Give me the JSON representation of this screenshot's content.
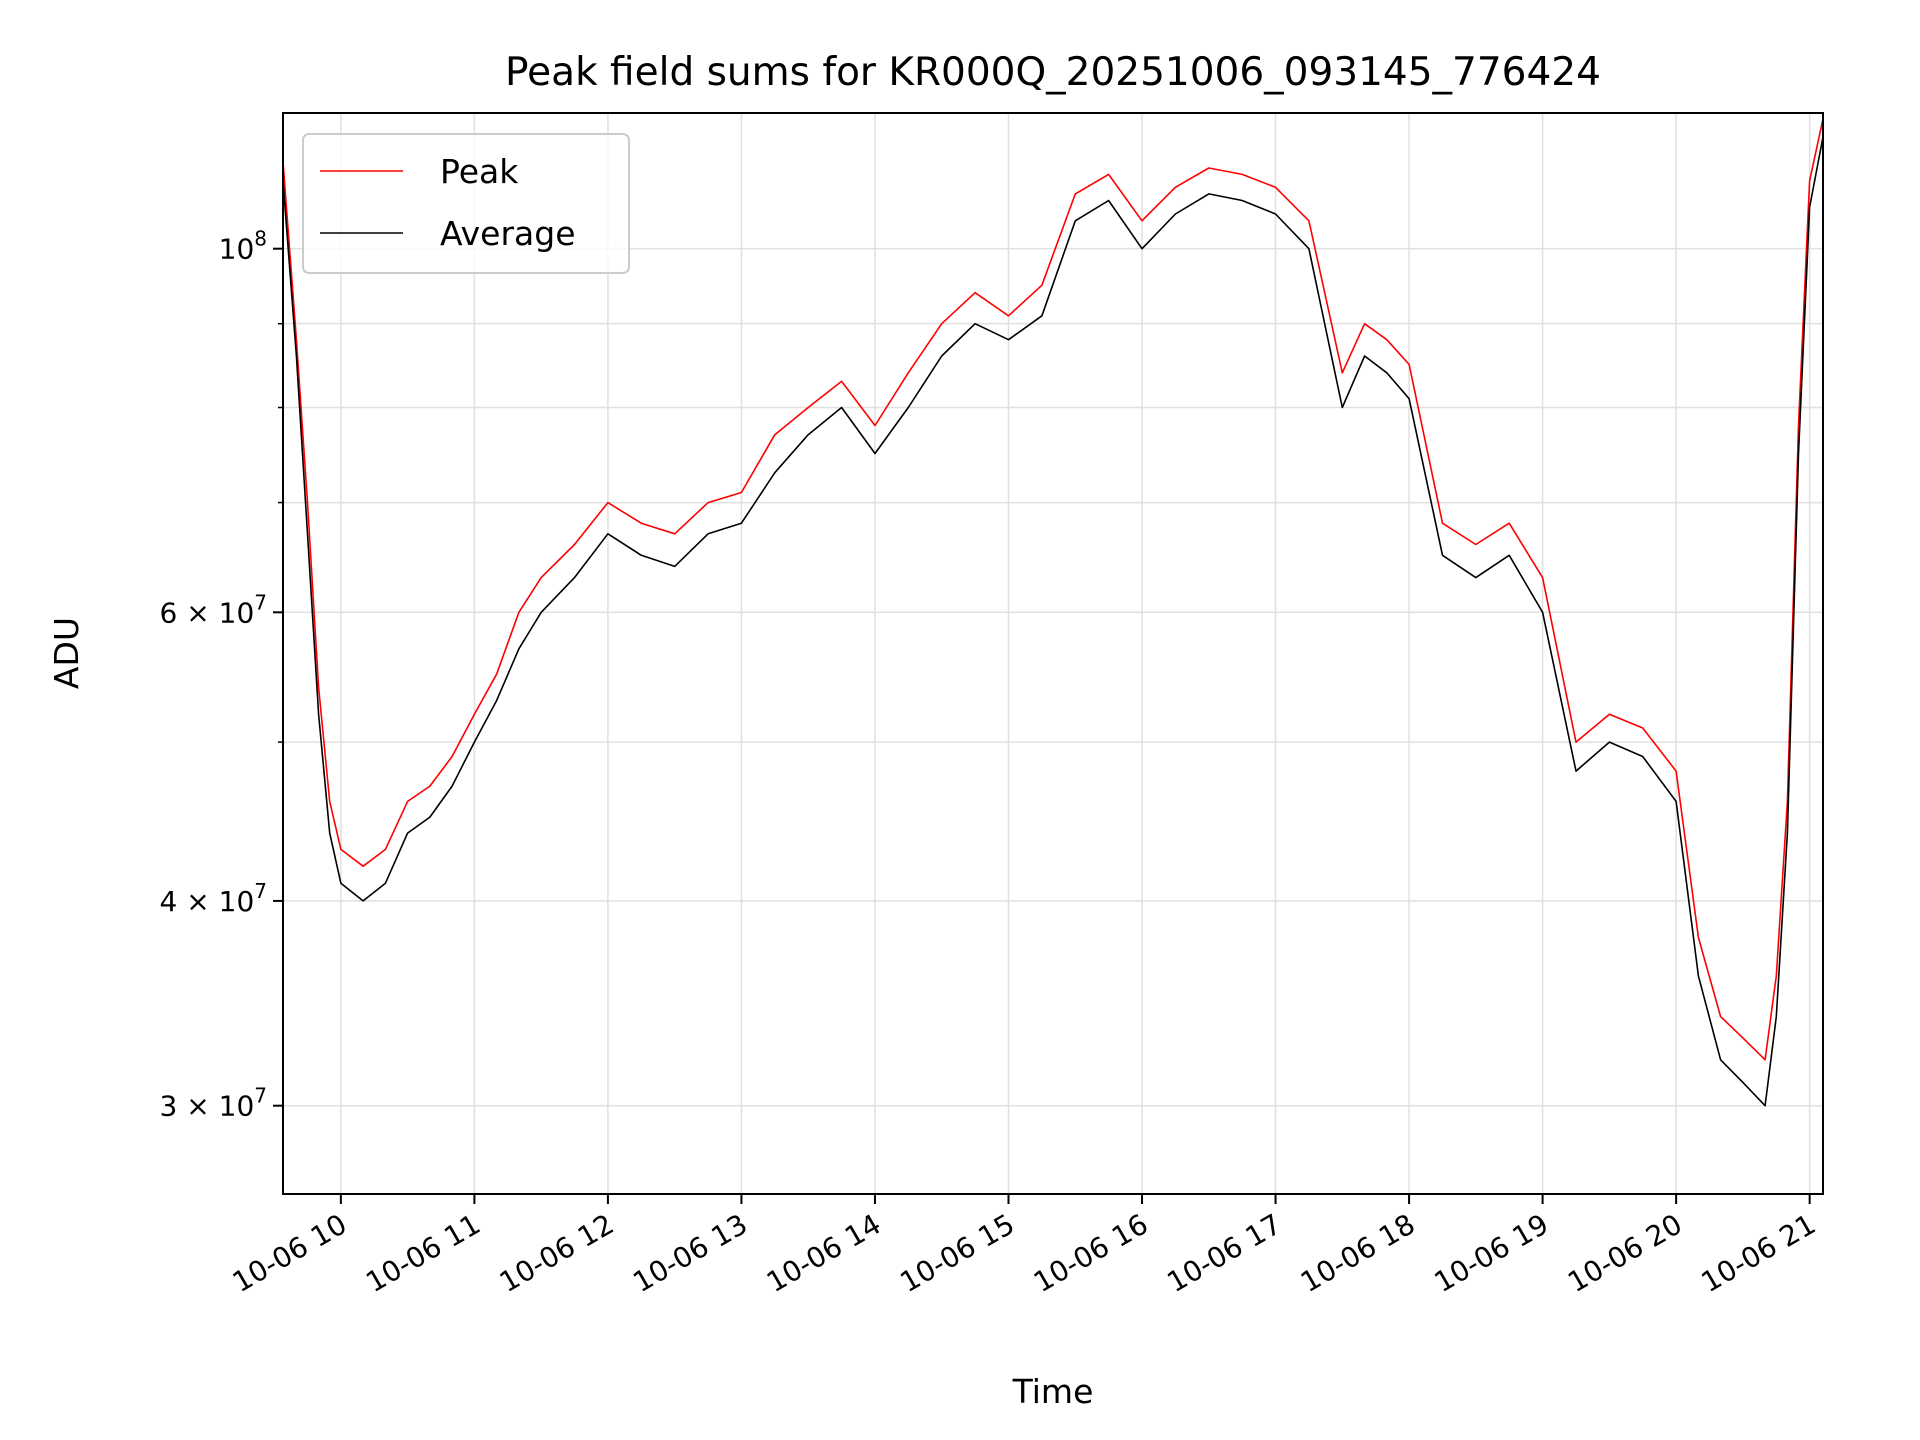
{
  "chart_data": {
    "type": "line",
    "title": "Peak field sums for KR000Q_20251006_093145_776424",
    "xlabel": "Time",
    "ylabel": "ADU",
    "y_scale": "log",
    "ylim": [
      26500000,
      121000000
    ],
    "xlim": [
      "2025-10-06 09:34",
      "2025-10-06 21:06"
    ],
    "grid": true,
    "legend": {
      "position": "top-left",
      "entries": [
        "Peak",
        "Average"
      ]
    },
    "x_ticks": [
      "10-06 10",
      "10-06 11",
      "10-06 12",
      "10-06 13",
      "10-06 14",
      "10-06 15",
      "10-06 16",
      "10-06 17",
      "10-06 18",
      "10-06 19",
      "10-06 20",
      "10-06 21"
    ],
    "x_tick_times": [
      "2025-10-06 10:00",
      "2025-10-06 11:00",
      "2025-10-06 12:00",
      "2025-10-06 13:00",
      "2025-10-06 14:00",
      "2025-10-06 15:00",
      "2025-10-06 16:00",
      "2025-10-06 17:00",
      "2025-10-06 18:00",
      "2025-10-06 19:00",
      "2025-10-06 20:00",
      "2025-10-06 21:00"
    ],
    "y_ticks": [
      {
        "value": 30000000,
        "mant": "3",
        "exp": "7"
      },
      {
        "value": 40000000,
        "mant": "4",
        "exp": "7"
      },
      {
        "value": 60000000,
        "mant": "6",
        "exp": "7"
      },
      {
        "value": 100000000,
        "mant": "",
        "exp": "8"
      }
    ],
    "y_minor_ticks": [
      50000000,
      70000000,
      80000000,
      90000000
    ],
    "series": [
      {
        "name": "Peak",
        "color": "#ff0000",
        "x": [
          "2025-10-06 09:34",
          "2025-10-06 09:40",
          "2025-10-06 09:45",
          "2025-10-06 09:50",
          "2025-10-06 09:55",
          "2025-10-06 10:00",
          "2025-10-06 10:10",
          "2025-10-06 10:20",
          "2025-10-06 10:30",
          "2025-10-06 10:40",
          "2025-10-06 10:50",
          "2025-10-06 11:00",
          "2025-10-06 11:10",
          "2025-10-06 11:20",
          "2025-10-06 11:30",
          "2025-10-06 11:45",
          "2025-10-06 12:00",
          "2025-10-06 12:15",
          "2025-10-06 12:30",
          "2025-10-06 12:45",
          "2025-10-06 13:00",
          "2025-10-06 13:15",
          "2025-10-06 13:30",
          "2025-10-06 13:45",
          "2025-10-06 14:00",
          "2025-10-06 14:15",
          "2025-10-06 14:30",
          "2025-10-06 14:45",
          "2025-10-06 15:00",
          "2025-10-06 15:15",
          "2025-10-06 15:30",
          "2025-10-06 15:45",
          "2025-10-06 16:00",
          "2025-10-06 16:15",
          "2025-10-06 16:30",
          "2025-10-06 16:45",
          "2025-10-06 17:00",
          "2025-10-06 17:15",
          "2025-10-06 17:30",
          "2025-10-06 17:40",
          "2025-10-06 17:50",
          "2025-10-06 18:00",
          "2025-10-06 18:15",
          "2025-10-06 18:30",
          "2025-10-06 18:45",
          "2025-10-06 19:00",
          "2025-10-06 19:15",
          "2025-10-06 19:30",
          "2025-10-06 19:45",
          "2025-10-06 20:00",
          "2025-10-06 20:10",
          "2025-10-06 20:20",
          "2025-10-06 20:30",
          "2025-10-06 20:40",
          "2025-10-06 20:45",
          "2025-10-06 20:50",
          "2025-10-06 20:55",
          "2025-10-06 21:00",
          "2025-10-06 21:06"
        ],
        "values": [
          113000000,
          88000000,
          70000000,
          54000000,
          46000000,
          43000000,
          42000000,
          43000000,
          46000000,
          47000000,
          49000000,
          52000000,
          55000000,
          60000000,
          63000000,
          66000000,
          70000000,
          68000000,
          67000000,
          70000000,
          71000000,
          77000000,
          80000000,
          83000000,
          78000000,
          84000000,
          90000000,
          94000000,
          91000000,
          95000000,
          108000000,
          111000000,
          104000000,
          109000000,
          112000000,
          111000000,
          109000000,
          104000000,
          84000000,
          90000000,
          88000000,
          85000000,
          68000000,
          66000000,
          68000000,
          63000000,
          50000000,
          52000000,
          51000000,
          48000000,
          38000000,
          34000000,
          33000000,
          32000000,
          36000000,
          46000000,
          78000000,
          110000000,
          120000000
        ]
      },
      {
        "name": "Average",
        "color": "#000000",
        "x": [
          "2025-10-06 09:34",
          "2025-10-06 09:40",
          "2025-10-06 09:45",
          "2025-10-06 09:50",
          "2025-10-06 09:55",
          "2025-10-06 10:00",
          "2025-10-06 10:10",
          "2025-10-06 10:20",
          "2025-10-06 10:30",
          "2025-10-06 10:40",
          "2025-10-06 10:50",
          "2025-10-06 11:00",
          "2025-10-06 11:10",
          "2025-10-06 11:20",
          "2025-10-06 11:30",
          "2025-10-06 11:45",
          "2025-10-06 12:00",
          "2025-10-06 12:15",
          "2025-10-06 12:30",
          "2025-10-06 12:45",
          "2025-10-06 13:00",
          "2025-10-06 13:15",
          "2025-10-06 13:30",
          "2025-10-06 13:45",
          "2025-10-06 14:00",
          "2025-10-06 14:15",
          "2025-10-06 14:30",
          "2025-10-06 14:45",
          "2025-10-06 15:00",
          "2025-10-06 15:15",
          "2025-10-06 15:30",
          "2025-10-06 15:45",
          "2025-10-06 16:00",
          "2025-10-06 16:15",
          "2025-10-06 16:30",
          "2025-10-06 16:45",
          "2025-10-06 17:00",
          "2025-10-06 17:15",
          "2025-10-06 17:30",
          "2025-10-06 17:40",
          "2025-10-06 17:50",
          "2025-10-06 18:00",
          "2025-10-06 18:15",
          "2025-10-06 18:30",
          "2025-10-06 18:45",
          "2025-10-06 19:00",
          "2025-10-06 19:15",
          "2025-10-06 19:30",
          "2025-10-06 19:45",
          "2025-10-06 20:00",
          "2025-10-06 20:10",
          "2025-10-06 20:20",
          "2025-10-06 20:30",
          "2025-10-06 20:40",
          "2025-10-06 20:45",
          "2025-10-06 20:50",
          "2025-10-06 20:55",
          "2025-10-06 21:00",
          "2025-10-06 21:06"
        ],
        "values": [
          110000000,
          86000000,
          67000000,
          52000000,
          44000000,
          41000000,
          40000000,
          41000000,
          44000000,
          45000000,
          47000000,
          50000000,
          53000000,
          57000000,
          60000000,
          63000000,
          67000000,
          65000000,
          64000000,
          67000000,
          68000000,
          73000000,
          77000000,
          80000000,
          75000000,
          80000000,
          86000000,
          90000000,
          88000000,
          91000000,
          104000000,
          107000000,
          100000000,
          105000000,
          108000000,
          107000000,
          105000000,
          100000000,
          80000000,
          86000000,
          84000000,
          81000000,
          65000000,
          63000000,
          65000000,
          60000000,
          48000000,
          50000000,
          49000000,
          46000000,
          36000000,
          32000000,
          31000000,
          30000000,
          34000000,
          44000000,
          75000000,
          106000000,
          117000000
        ]
      }
    ]
  }
}
